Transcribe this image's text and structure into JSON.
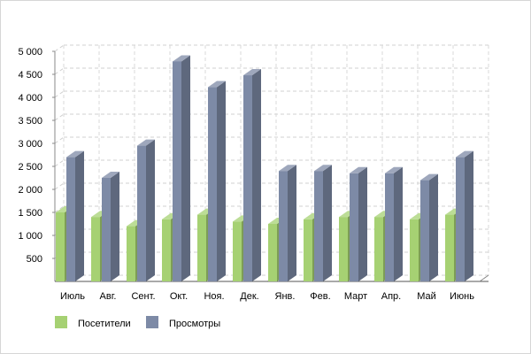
{
  "chart_data": {
    "type": "bar",
    "categories": [
      "Июль",
      "Авг.",
      "Сент.",
      "Окт.",
      "Ноя.",
      "Дек.",
      "Янв.",
      "Фев.",
      "Март",
      "Апр.",
      "Май",
      "Июнь"
    ],
    "series": [
      {
        "name": "Посетители",
        "color": "#a6d173",
        "values": [
          1500,
          1400,
          1200,
          1350,
          1450,
          1300,
          1250,
          1350,
          1400,
          1400,
          1350,
          1450
        ]
      },
      {
        "name": "Просмотры",
        "color": "#7d8aa6",
        "values": [
          2700,
          2250,
          2950,
          4780,
          4220,
          4480,
          2400,
          2400,
          2350,
          2350,
          2200,
          2700
        ]
      }
    ],
    "ylim": [
      0,
      5000
    ],
    "yticks": [
      500,
      1000,
      1500,
      2000,
      2500,
      3000,
      3500,
      4000,
      4500,
      5000
    ],
    "ytick_labels": [
      "500",
      "1 000",
      "1 500",
      "2 000",
      "2 500",
      "3 000",
      "3 500",
      "4 000",
      "4 500",
      "5 000"
    ],
    "grid": true,
    "legend_position": "bottom-left",
    "title": "",
    "xlabel": "",
    "ylabel": ""
  }
}
